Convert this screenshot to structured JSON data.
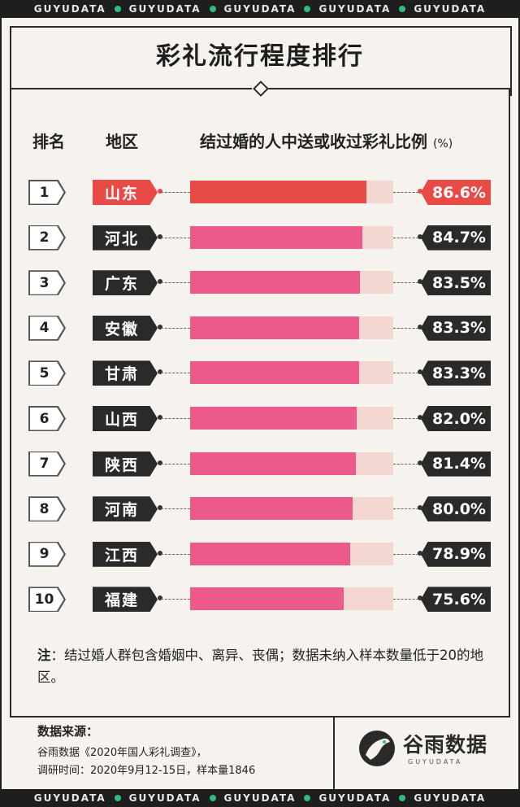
{
  "banner": {
    "word": "GUYUDATA"
  },
  "title": "彩礼流行程度排行",
  "headers": {
    "rank": "排名",
    "region": "地区",
    "metric": "结过婚的人中送或收过彩礼比例",
    "unit": "(%)"
  },
  "chart_data": {
    "type": "bar",
    "orientation": "horizontal",
    "value_max": 100,
    "highlight_color": "#e84b45",
    "bar_color": "#eb5a8a",
    "track_color": "#f5d7d2",
    "rows": [
      {
        "rank": "1",
        "region": "山东",
        "value": 86.6,
        "label": "86.6%"
      },
      {
        "rank": "2",
        "region": "河北",
        "value": 84.7,
        "label": "84.7%"
      },
      {
        "rank": "3",
        "region": "广东",
        "value": 83.5,
        "label": "83.5%"
      },
      {
        "rank": "4",
        "region": "安徽",
        "value": 83.3,
        "label": "83.3%"
      },
      {
        "rank": "5",
        "region": "甘肃",
        "value": 83.3,
        "label": "83.3%"
      },
      {
        "rank": "6",
        "region": "山西",
        "value": 82.0,
        "label": "82.0%"
      },
      {
        "rank": "7",
        "region": "陕西",
        "value": 81.4,
        "label": "81.4%"
      },
      {
        "rank": "8",
        "region": "河南",
        "value": 80.0,
        "label": "80.0%"
      },
      {
        "rank": "9",
        "region": "江西",
        "value": 78.9,
        "label": "78.9%"
      },
      {
        "rank": "10",
        "region": "福建",
        "value": 75.6,
        "label": "75.6%"
      }
    ]
  },
  "note": {
    "label": "注",
    "text": "：结过婚人群包含婚姻中、离异、丧偶；数据未纳入样本数量低于20的地区。"
  },
  "source": {
    "title": "数据来源：",
    "line1": "谷雨数据《2020年国人彩礼调查》，",
    "line2": "调研时间：2020年9月12-15日，样本量1846"
  },
  "logo": {
    "name": "谷雨数据",
    "sub": "GUYUDATA"
  }
}
